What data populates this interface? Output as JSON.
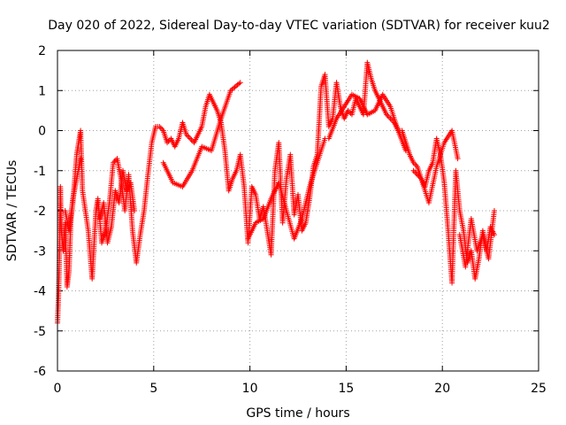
{
  "chart_data": {
    "type": "scatter",
    "title": "Day 020 of 2022, Sidereal Day-to-day VTEC variation (SDTVAR) for receiver kuu2",
    "xlabel": "GPS time / hours",
    "ylabel": "SDTVAR / TECUs",
    "xlim": [
      0,
      25
    ],
    "ylim": [
      -6,
      2
    ],
    "xticks": [
      0,
      5,
      10,
      15,
      20,
      25
    ],
    "yticks": [
      -6,
      -5,
      -4,
      -3,
      -2,
      -1,
      0,
      1,
      2
    ],
    "grid": true,
    "marker": "+",
    "color": "#ff0000",
    "series": [
      {
        "name": "SDTVAR",
        "x": [
          0.0,
          0.05,
          0.1,
          0.15,
          0.2,
          0.3,
          0.4,
          0.5,
          0.6,
          0.7,
          0.8,
          0.9,
          1.0,
          1.1,
          1.2,
          1.3,
          1.6,
          1.8,
          2.0,
          2.1,
          2.3,
          2.5,
          2.7,
          2.9,
          3.1,
          3.3,
          3.5,
          3.7,
          3.9,
          4.1,
          4.3,
          4.5,
          4.7,
          4.9,
          5.1,
          5.3,
          5.5,
          5.7,
          5.9,
          6.1,
          6.3,
          6.5,
          6.7,
          6.9,
          7.1,
          7.3,
          7.5,
          7.7,
          7.9,
          8.1,
          8.3,
          8.5,
          8.7,
          8.9,
          9.1,
          9.3,
          9.5,
          9.7,
          9.9,
          10.1,
          10.3,
          10.5,
          10.7,
          10.9,
          11.1,
          11.3,
          11.5,
          11.7,
          11.9,
          12.1,
          12.3,
          12.5,
          12.7,
          12.9,
          13.1,
          13.3,
          13.5,
          13.7,
          13.9,
          14.1,
          14.3,
          14.5,
          14.7,
          14.9,
          15.1,
          15.3,
          15.5,
          15.7,
          15.9,
          16.1,
          16.3,
          16.5,
          16.7,
          16.9,
          17.1,
          17.3,
          17.5,
          17.7,
          17.9,
          18.1,
          18.3,
          18.5,
          18.7,
          18.9,
          19.1,
          19.3,
          19.5,
          19.7,
          19.9,
          20.1,
          20.3,
          20.5,
          20.7,
          20.9,
          21.1,
          21.3,
          21.5,
          21.7,
          21.9,
          22.1,
          22.3,
          22.5,
          22.7
        ],
        "y": [
          -4.8,
          -4.2,
          -3.2,
          -1.4,
          -2.5,
          -3.0,
          -2.3,
          -3.9,
          -3.5,
          -2.2,
          -1.8,
          -1.2,
          -0.6,
          -0.3,
          0.0,
          -1.5,
          -2.5,
          -3.7,
          -2.0,
          -1.7,
          -2.8,
          -2.5,
          -1.8,
          -0.8,
          -0.7,
          -1.2,
          -2.0,
          -1.1,
          -2.5,
          -3.3,
          -2.6,
          -2.0,
          -1.1,
          -0.3,
          0.1,
          0.1,
          0.0,
          -0.3,
          -0.2,
          -0.4,
          -0.2,
          0.2,
          -0.1,
          -0.2,
          -0.3,
          -0.1,
          0.1,
          0.6,
          0.9,
          0.7,
          0.5,
          0.2,
          -0.5,
          -1.5,
          -1.2,
          -1.0,
          -0.6,
          -1.4,
          -2.8,
          -1.4,
          -1.6,
          -2.2,
          -1.9,
          -2.5,
          -3.1,
          -1.0,
          -0.3,
          -2.3,
          -1.2,
          -0.6,
          -2.1,
          -1.6,
          -2.5,
          -2.3,
          -1.7,
          -0.9,
          -0.6,
          1.1,
          1.4,
          0.1,
          0.3,
          1.2,
          0.6,
          0.3,
          0.5,
          0.4,
          0.8,
          0.6,
          0.4,
          1.7,
          1.3,
          1.0,
          0.8,
          0.6,
          0.4,
          0.3,
          0.2,
          0.0,
          0.0,
          -0.3,
          -0.6,
          -0.8,
          -0.9,
          -1.2,
          -1.4,
          -1.0,
          -0.8,
          -0.2,
          -0.6,
          -1.3,
          -2.5,
          -3.8,
          -1.0,
          -2.0,
          -2.5,
          -3.3,
          -3.0,
          -3.7,
          -3.2,
          -2.5,
          -3.0,
          -2.4,
          -2.6
        ],
        "branches": [
          {
            "x": [
              0.4,
              0.6,
              0.8,
              1.0,
              1.2
            ],
            "y": [
              -2.0,
              -2.5,
              -1.7,
              -1.2,
              -0.7
            ]
          },
          {
            "x": [
              2.2,
              2.4,
              2.6,
              2.8,
              3.0,
              3.2,
              3.4,
              3.6,
              3.8,
              4.0
            ],
            "y": [
              -2.2,
              -1.8,
              -2.8,
              -2.4,
              -1.5,
              -1.8,
              -1.0,
              -1.5,
              -1.3,
              -2.0
            ]
          },
          {
            "x": [
              5.5,
              6.0,
              6.5,
              7.0,
              7.5,
              8.0,
              8.5,
              9.0,
              9.5
            ],
            "y": [
              -0.8,
              -1.3,
              -1.4,
              -1.0,
              -0.4,
              -0.5,
              0.3,
              1.0,
              1.2
            ]
          },
          {
            "x": [
              9.9,
              10.3,
              10.7,
              11.1,
              11.5,
              11.9,
              12.3,
              12.7,
              13.1,
              13.5,
              13.9
            ],
            "y": [
              -2.7,
              -2.3,
              -2.2,
              -1.7,
              -1.3,
              -2.0,
              -2.7,
              -2.2,
              -1.4,
              -0.8,
              -0.2
            ]
          },
          {
            "x": [
              14.1,
              14.5,
              14.9,
              15.3,
              15.7,
              16.1,
              16.5,
              16.9,
              17.3,
              17.7,
              18.1
            ],
            "y": [
              -0.2,
              0.3,
              0.6,
              0.9,
              0.8,
              0.4,
              0.5,
              0.9,
              0.6,
              0.0,
              -0.5
            ]
          },
          {
            "x": [
              18.5,
              18.9,
              19.3,
              19.7,
              20.1,
              20.5,
              20.8
            ],
            "y": [
              -1.0,
              -1.2,
              -1.8,
              -0.9,
              -0.3,
              0.0,
              -0.7
            ]
          },
          {
            "x": [
              20.9,
              21.2,
              21.5,
              21.8,
              22.1,
              22.4,
              22.7
            ],
            "y": [
              -2.6,
              -3.4,
              -2.2,
              -3.0,
              -2.6,
              -3.2,
              -2.0
            ]
          }
        ]
      }
    ]
  }
}
